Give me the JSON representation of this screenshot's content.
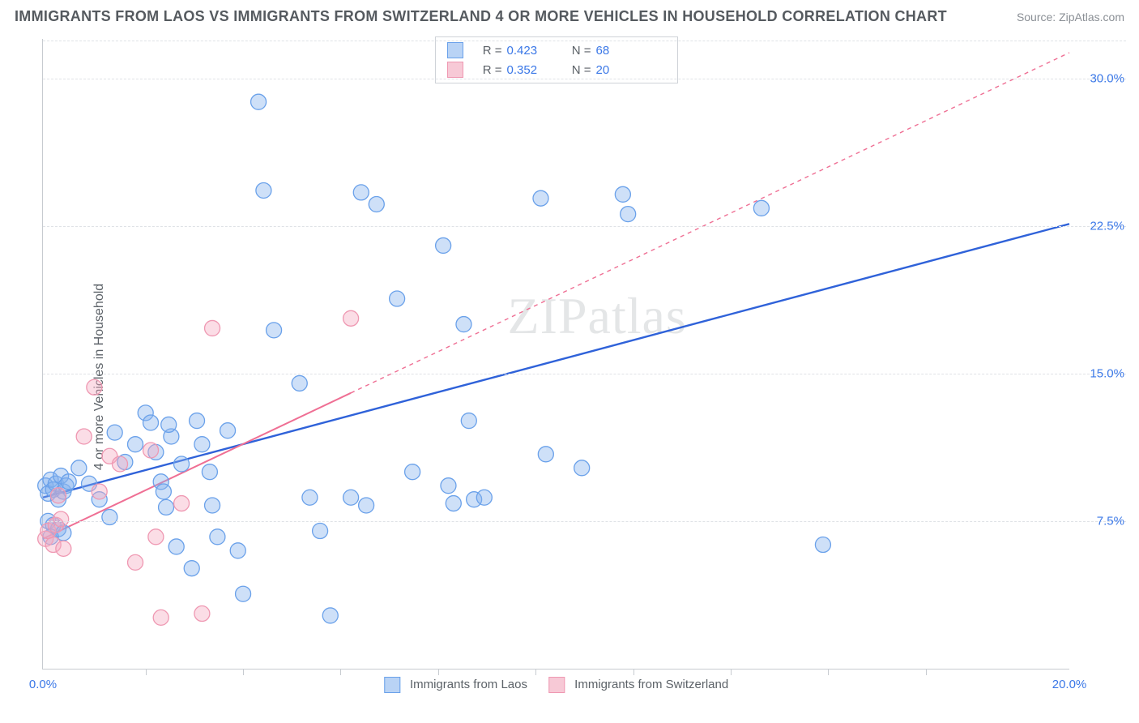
{
  "header": {
    "title": "IMMIGRANTS FROM LAOS VS IMMIGRANTS FROM SWITZERLAND 4 OR MORE VEHICLES IN HOUSEHOLD CORRELATION CHART",
    "source": "Source: ZipAtlas.com"
  },
  "chart": {
    "type": "scatter",
    "watermark": "ZIPatlas",
    "y_axis_title": "4 or more Vehicles in Household",
    "xlim": [
      0,
      20
    ],
    "ylim": [
      0,
      32
    ],
    "x_ticks": [
      0,
      20
    ],
    "x_tick_labels": [
      "0.0%",
      "20.0%"
    ],
    "x_minor_ticks": [
      2.0,
      3.9,
      5.8,
      7.7,
      9.6,
      11.5,
      13.4,
      15.3,
      17.2
    ],
    "y_grid": [
      7.5,
      15.0,
      22.5,
      30.0
    ],
    "y_tick_labels": [
      "7.5%",
      "15.0%",
      "22.5%",
      "30.0%"
    ],
    "background_color": "#ffffff",
    "grid_color": "#dfe2e6",
    "axis_color": "#c7cbd0",
    "tick_label_color": "#3b78e7",
    "marker_radius": 9.5,
    "marker_stroke_width": 1.3,
    "legend_top": {
      "rows": [
        {
          "swatch_fill": "#b9d3f5",
          "swatch_stroke": "#6aa1ea",
          "r_label": "R =",
          "r_value": "0.423",
          "n_label": "N =",
          "n_value": "68"
        },
        {
          "swatch_fill": "#f7c9d6",
          "swatch_stroke": "#ef98b2",
          "r_label": "R =",
          "r_value": "0.352",
          "n_label": "N =",
          "n_value": "20"
        }
      ]
    },
    "x_legend": [
      {
        "swatch_fill": "#b9d3f5",
        "swatch_stroke": "#6aa1ea",
        "label": "Immigrants from Laos"
      },
      {
        "swatch_fill": "#f7c9d6",
        "swatch_stroke": "#ef98b2",
        "label": "Immigrants from Switzerland"
      }
    ],
    "series": [
      {
        "name": "laos",
        "marker_fill": "rgba(133,178,238,0.40)",
        "marker_stroke": "#6aa1ea",
        "trend": {
          "x1": 0,
          "y1": 8.7,
          "x2": 20,
          "y2": 22.6,
          "extend": false,
          "color": "#2f62d9",
          "width": 2.4,
          "dash": "none"
        },
        "points": [
          [
            0.05,
            9.3
          ],
          [
            0.1,
            8.9
          ],
          [
            0.15,
            9.6
          ],
          [
            0.2,
            9.1
          ],
          [
            0.25,
            9.4
          ],
          [
            0.3,
            8.6
          ],
          [
            0.35,
            9.8
          ],
          [
            0.4,
            9.0
          ],
          [
            0.45,
            9.3
          ],
          [
            0.5,
            9.5
          ],
          [
            0.1,
            7.5
          ],
          [
            0.2,
            7.3
          ],
          [
            0.3,
            7.1
          ],
          [
            0.4,
            6.9
          ],
          [
            0.15,
            6.7
          ],
          [
            0.7,
            10.2
          ],
          [
            0.9,
            9.4
          ],
          [
            1.1,
            8.6
          ],
          [
            1.3,
            7.7
          ],
          [
            1.4,
            12.0
          ],
          [
            1.6,
            10.5
          ],
          [
            1.8,
            11.4
          ],
          [
            2.0,
            13.0
          ],
          [
            2.1,
            12.5
          ],
          [
            2.2,
            11.0
          ],
          [
            2.3,
            9.5
          ],
          [
            2.4,
            8.2
          ],
          [
            2.5,
            11.8
          ],
          [
            2.6,
            6.2
          ],
          [
            2.7,
            10.4
          ],
          [
            2.9,
            5.1
          ],
          [
            3.0,
            12.6
          ],
          [
            3.1,
            11.4
          ],
          [
            3.3,
            8.3
          ],
          [
            3.4,
            6.7
          ],
          [
            3.6,
            12.1
          ],
          [
            3.8,
            6.0
          ],
          [
            3.9,
            3.8
          ],
          [
            4.2,
            28.8
          ],
          [
            4.3,
            24.3
          ],
          [
            4.5,
            17.2
          ],
          [
            5.0,
            14.5
          ],
          [
            5.2,
            8.7
          ],
          [
            5.4,
            7.0
          ],
          [
            5.6,
            2.7
          ],
          [
            6.0,
            8.7
          ],
          [
            6.2,
            24.2
          ],
          [
            6.3,
            8.3
          ],
          [
            6.5,
            23.6
          ],
          [
            6.9,
            18.8
          ],
          [
            7.2,
            10.0
          ],
          [
            7.8,
            21.5
          ],
          [
            7.9,
            9.3
          ],
          [
            8.0,
            8.4
          ],
          [
            8.2,
            17.5
          ],
          [
            8.3,
            12.6
          ],
          [
            8.4,
            8.6
          ],
          [
            8.6,
            8.7
          ],
          [
            9.7,
            23.9
          ],
          [
            9.8,
            10.9
          ],
          [
            10.5,
            10.2
          ],
          [
            11.3,
            24.1
          ],
          [
            11.4,
            23.1
          ],
          [
            14.0,
            23.4
          ],
          [
            15.2,
            6.3
          ],
          [
            2.45,
            12.4
          ],
          [
            2.35,
            9.0
          ],
          [
            3.25,
            10.0
          ]
        ]
      },
      {
        "name": "switzerland",
        "marker_fill": "rgba(244,171,193,0.40)",
        "marker_stroke": "#ef98b2",
        "trend": {
          "x1": 0,
          "y1": 6.6,
          "x2": 6,
          "y2": 14.0,
          "extend": true,
          "extend_x2": 20,
          "extend_y2": 31.3,
          "color": "#ef6f94",
          "width": 2.0,
          "dash": "5,5",
          "solid_until": 6
        },
        "points": [
          [
            0.05,
            6.6
          ],
          [
            0.1,
            7.0
          ],
          [
            0.2,
            6.3
          ],
          [
            0.25,
            7.3
          ],
          [
            0.3,
            8.8
          ],
          [
            0.35,
            7.6
          ],
          [
            0.4,
            6.1
          ],
          [
            0.8,
            11.8
          ],
          [
            1.0,
            14.3
          ],
          [
            1.1,
            9.0
          ],
          [
            1.3,
            10.8
          ],
          [
            1.5,
            10.4
          ],
          [
            1.8,
            5.4
          ],
          [
            2.1,
            11.1
          ],
          [
            2.2,
            6.7
          ],
          [
            2.3,
            2.6
          ],
          [
            2.7,
            8.4
          ],
          [
            3.1,
            2.8
          ],
          [
            3.3,
            17.3
          ],
          [
            6.0,
            17.8
          ]
        ]
      }
    ]
  }
}
